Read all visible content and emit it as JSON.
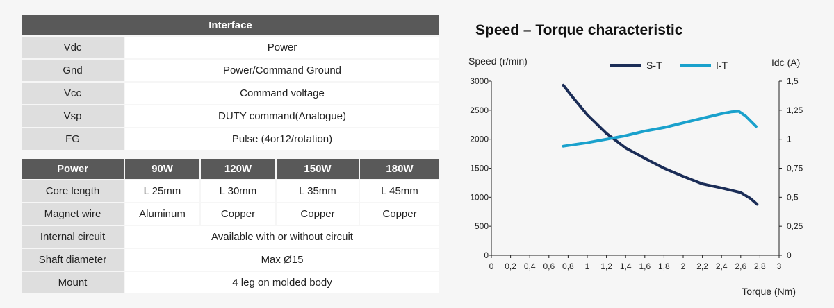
{
  "interface": {
    "title": "Interface",
    "rows": [
      {
        "name": "Vdc",
        "value": "Power"
      },
      {
        "name": "Gnd",
        "value": "Power/Command Ground"
      },
      {
        "name": "Vcc",
        "value": "Command voltage"
      },
      {
        "name": "Vsp",
        "value": "DUTY command(Analogue)"
      },
      {
        "name": "FG",
        "value": "Pulse (4or12/rotation)"
      }
    ]
  },
  "power": {
    "header": "Power",
    "columns": [
      "90W",
      "120W",
      "150W",
      "180W"
    ],
    "rows": [
      {
        "name": "Core length",
        "values": [
          "L 25mm",
          "L 30mm",
          "L 35mm",
          "L 45mm"
        ]
      },
      {
        "name": "Magnet wire",
        "values": [
          "Aluminum",
          "Copper",
          "Copper",
          "Copper"
        ]
      },
      {
        "name": "Internal circuit",
        "merged": "Available with or without circuit"
      },
      {
        "name": "Shaft diameter",
        "merged": "Max Ø15"
      },
      {
        "name": "Mount",
        "merged": "4 leg on molded body"
      }
    ]
  },
  "chart_data": {
    "type": "line",
    "title": "Speed – Torque characteristic",
    "xlabel": "Torque (Nm)",
    "ylabel": "Speed (r/min)",
    "y2label": "Idc (A)",
    "xlim": [
      0,
      3
    ],
    "ylim": [
      0,
      3000
    ],
    "y2lim": [
      0,
      1.5
    ],
    "x_ticks": [
      "0",
      "0,2",
      "0,4",
      "0,6",
      "0,8",
      "1",
      "1,2",
      "1,4",
      "1,6",
      "1,8",
      "2",
      "2,2",
      "2,4",
      "2,6",
      "2,8",
      "3"
    ],
    "y_ticks": [
      "0",
      "500",
      "1000",
      "1500",
      "2000",
      "2500",
      "3000"
    ],
    "y2_ticks": [
      "0",
      "0,25",
      "0,5",
      "0,75",
      "1",
      "1,25",
      "1,5"
    ],
    "legend_position": "top",
    "series": [
      {
        "name": "S-T",
        "axis": "left",
        "color": "#1b2d57",
        "x": [
          0.75,
          0.85,
          1.0,
          1.2,
          1.4,
          1.6,
          1.8,
          2.0,
          2.2,
          2.4,
          2.6,
          2.7,
          2.77
        ],
        "y": [
          2930,
          2720,
          2420,
          2100,
          1850,
          1670,
          1500,
          1360,
          1230,
          1160,
          1080,
          980,
          880
        ]
      },
      {
        "name": "I-T",
        "axis": "right",
        "color": "#1aa1cc",
        "x": [
          0.75,
          1.0,
          1.2,
          1.4,
          1.6,
          1.8,
          2.0,
          2.2,
          2.4,
          2.5,
          2.58,
          2.65,
          2.76
        ],
        "y": [
          0.94,
          0.97,
          1.0,
          1.03,
          1.07,
          1.1,
          1.14,
          1.18,
          1.22,
          1.235,
          1.24,
          1.2,
          1.11
        ]
      }
    ]
  }
}
